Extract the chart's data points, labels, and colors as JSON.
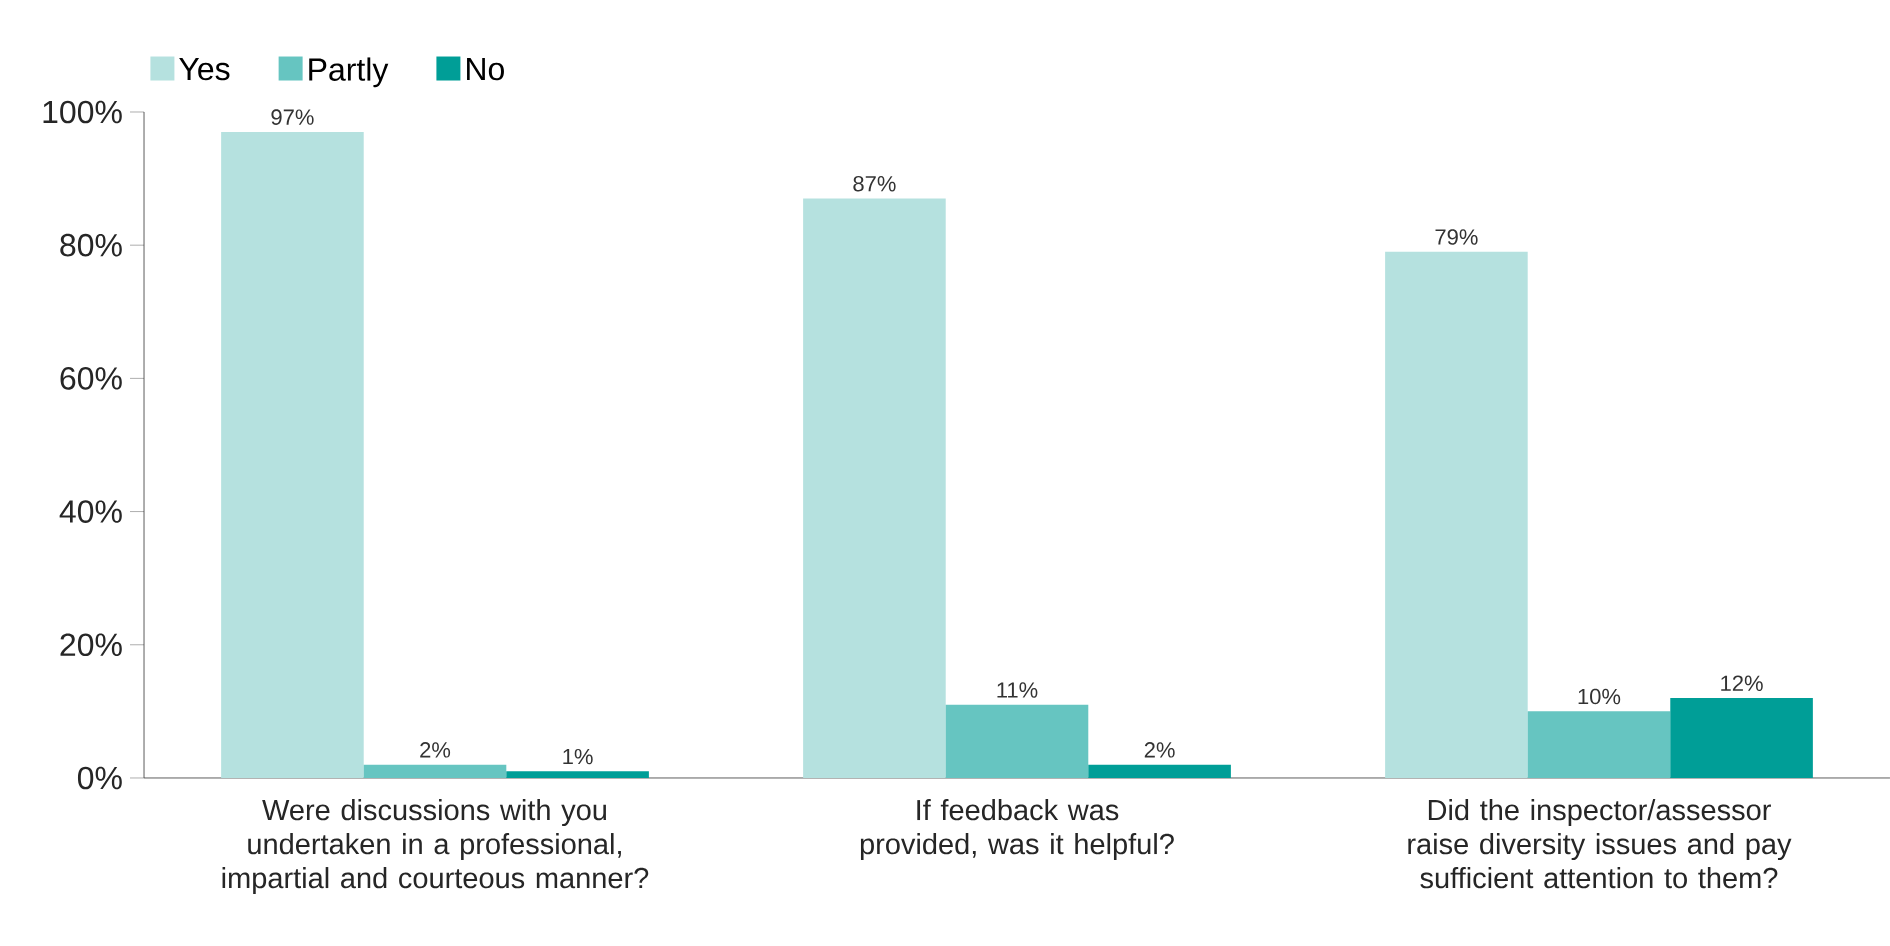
{
  "chart_data": {
    "type": "bar",
    "categories": [
      "Were discussions with you undertaken in a professional, impartial and courteous manner?",
      "If feedback was provided, was it helpful?",
      "Did the inspector/assessor raise diversity issues and pay sufficient attention to them?"
    ],
    "series": [
      {
        "name": "Yes",
        "color": "#b5e1df",
        "values": [
          97,
          87,
          79
        ],
        "value_labels": [
          "97%",
          "87%",
          "79%"
        ]
      },
      {
        "name": "Partly",
        "color": "#66c5c1",
        "values": [
          2,
          11,
          10
        ],
        "value_labels": [
          "2%",
          "11%",
          "10%"
        ]
      },
      {
        "name": "No",
        "color": "#009e97",
        "values": [
          1,
          2,
          12
        ],
        "value_labels": [
          "1%",
          "2%",
          "12%"
        ]
      }
    ],
    "ylim": [
      0,
      100
    ],
    "yticks": [
      {
        "value": 0,
        "label": "0%"
      },
      {
        "value": 20,
        "label": "20%"
      },
      {
        "value": 40,
        "label": "40%"
      },
      {
        "value": 60,
        "label": "60%"
      },
      {
        "value": 80,
        "label": "80%"
      },
      {
        "value": 100,
        "label": "100%"
      }
    ],
    "grid": false,
    "legend": "top left"
  }
}
